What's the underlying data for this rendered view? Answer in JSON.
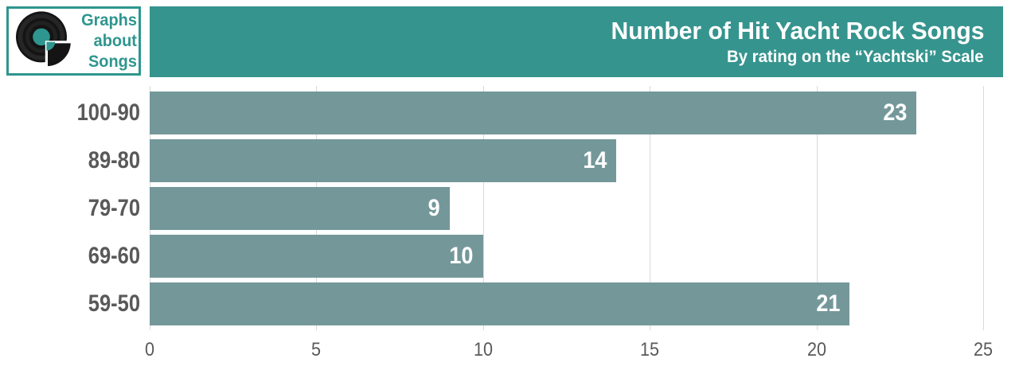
{
  "logo": {
    "name": "Graphs about Songs",
    "lines": [
      "Graphs",
      "about",
      "Songs"
    ],
    "icon": "vinyl-record-icon",
    "accent_color": "#2E968E"
  },
  "header": {
    "background_color": "#36948E"
  },
  "chart_data": {
    "type": "bar",
    "orientation": "horizontal",
    "title": "Number of Hit Yacht Rock Songs",
    "subtitle": "By rating on the “Yachtski” Scale",
    "categories": [
      "100-90",
      "89-80",
      "79-70",
      "69-60",
      "59-50"
    ],
    "values": [
      23,
      14,
      9,
      10,
      21
    ],
    "xlabel": "",
    "ylabel": "",
    "xlim": [
      0,
      25
    ],
    "xticks": [
      0,
      5,
      10,
      15,
      20,
      25
    ],
    "grid": "vertical-only",
    "legend": "none",
    "bar_color": "#74989A",
    "value_label_color": "#FFFFFF",
    "axis_text_color": "#595959",
    "gridline_color": "#D9D9D9"
  }
}
